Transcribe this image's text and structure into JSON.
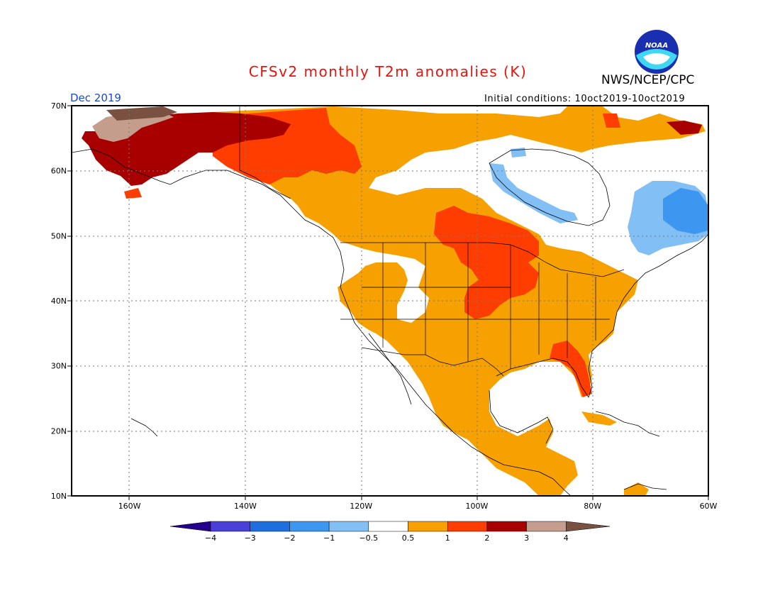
{
  "title": "CFSv2 monthly T2m anomalies (K)",
  "agency": "NWS/NCEP/CPC",
  "logo_text": "NOAA",
  "period": "Dec 2019",
  "initial_conditions": "Initial conditions: 10oct2019-10oct2019",
  "lat_labels": [
    "70N",
    "60N",
    "50N",
    "40N",
    "30N",
    "20N",
    "10N"
  ],
  "lon_labels": [
    "160W",
    "140W",
    "120W",
    "100W",
    "80W",
    "60W"
  ],
  "colorbar": {
    "tick_labels": [
      "-4",
      "-3",
      "-2",
      "-1",
      "-0.5",
      "0.5",
      "1",
      "2",
      "3",
      "4"
    ],
    "colors": [
      "#24008c",
      "#4a3fd6",
      "#1e6ee0",
      "#3d96f0",
      "#82bff5",
      "#ffffff",
      "#f7a100",
      "#ff3d00",
      "#a80000",
      "#c49d8c",
      "#7a5040"
    ]
  },
  "colors": {
    "title": "#e8120c",
    "period": "#1a47d6",
    "frame": "#000000"
  },
  "map_extent": {
    "lon_min": -170,
    "lon_max": -60,
    "lat_min": 10,
    "lat_max": 70
  }
}
